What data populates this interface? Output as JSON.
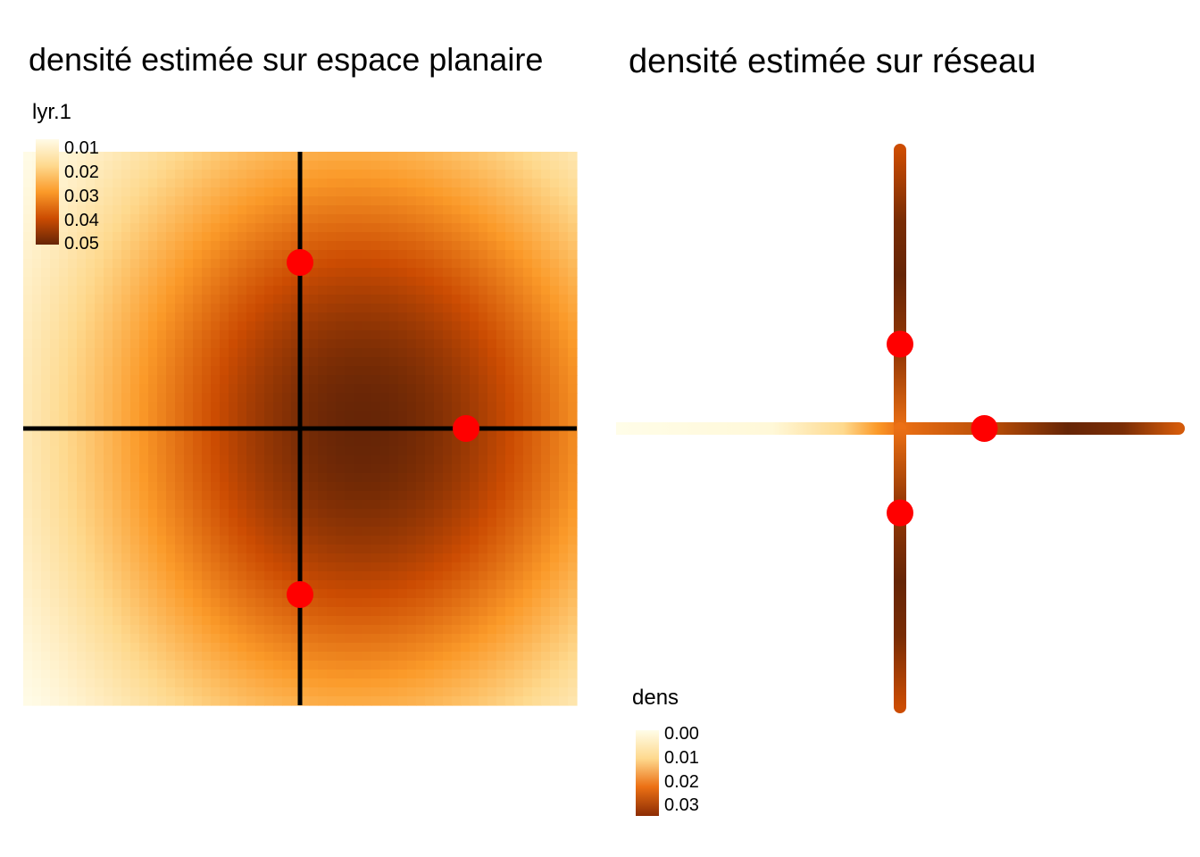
{
  "chart_data": [
    {
      "type": "heatmap",
      "title": "densité estimée sur espace planaire",
      "legend": {
        "title": "lyr.1",
        "ticks": [
          "0.01",
          "0.02",
          "0.03",
          "0.04",
          "0.05"
        ],
        "placement": "top-left"
      },
      "network": {
        "vertical_x": 0,
        "horizontal_y": 0,
        "range": [
          -5,
          5
        ]
      },
      "points": [
        {
          "x": 0,
          "y": 3
        },
        {
          "x": 3,
          "y": 0
        },
        {
          "x": 0,
          "y": -3
        }
      ],
      "colors": [
        "#fffbe6",
        "#fed98e",
        "#fb9a29",
        "#cc4c02",
        "#662506"
      ]
    },
    {
      "type": "line",
      "title": "densité estimée sur réseau",
      "legend": {
        "title": "dens",
        "ticks": [
          "0.00",
          "0.01",
          "0.02",
          "0.03"
        ],
        "placement": "bottom-left"
      },
      "points": [
        {
          "x": 0,
          "y": 3
        },
        {
          "x": 3,
          "y": 0
        },
        {
          "x": 0,
          "y": -3
        }
      ],
      "colors": [
        "#fffde8",
        "#fed98e",
        "#fb9a29",
        "#cc4c02",
        "#662506"
      ]
    }
  ],
  "colors": {
    "point": "#ff0000",
    "line": "#000000"
  }
}
